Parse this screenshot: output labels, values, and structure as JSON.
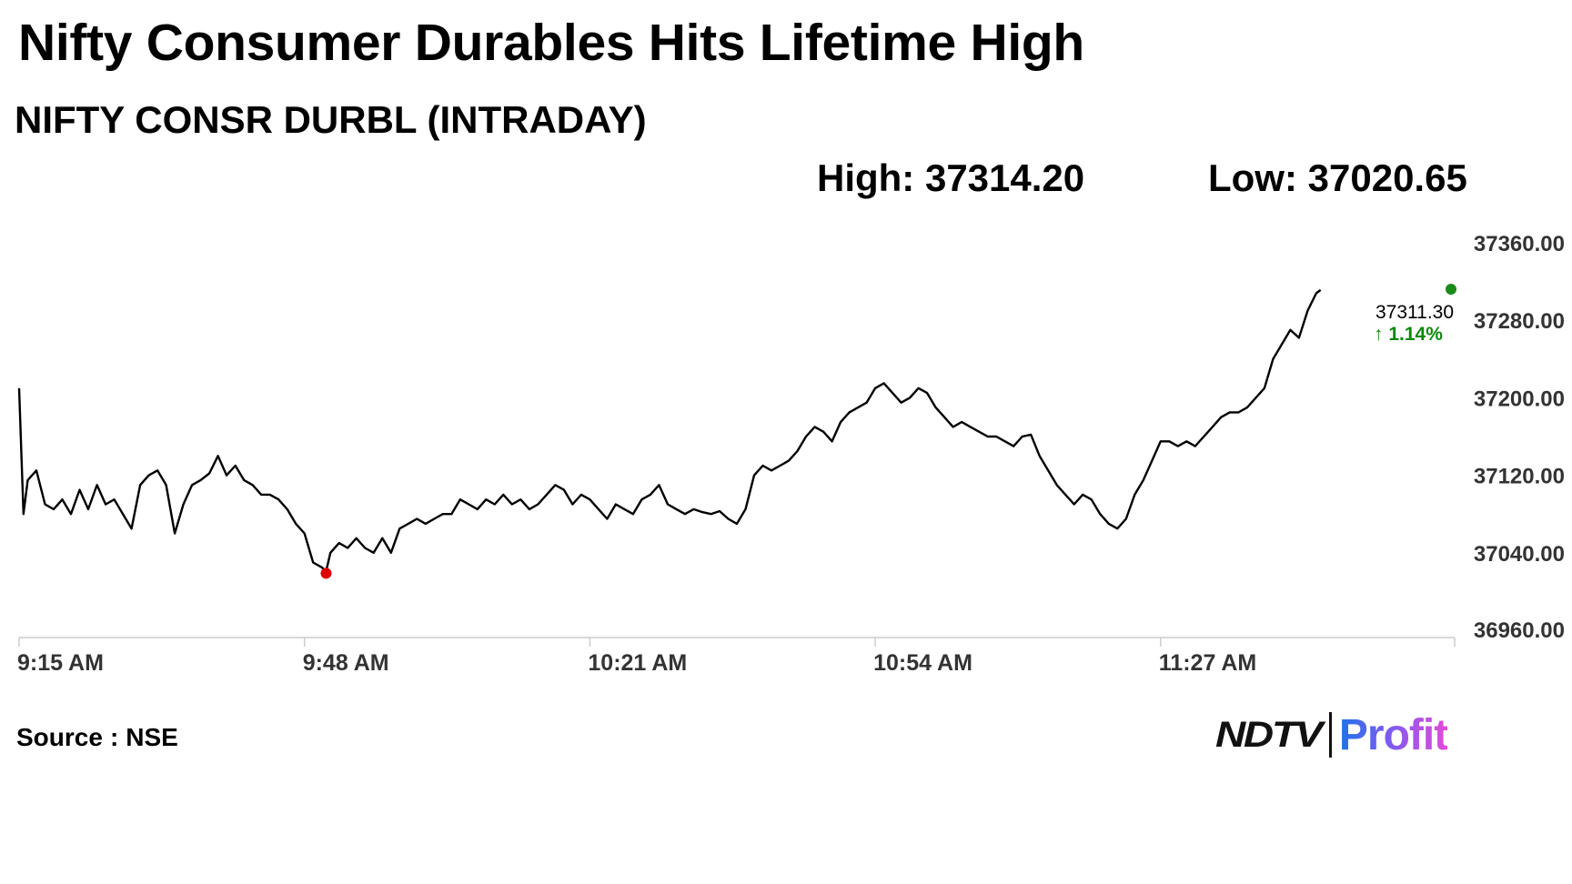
{
  "headline": "Nifty Consumer Durables Hits Lifetime High",
  "subtitle": "NIFTY CONSR DURBL (INTRADAY)",
  "stats": {
    "high_label": "High:",
    "high_value": "37314.20",
    "low_label": "Low:",
    "low_value": "37020.65"
  },
  "source": {
    "label": "Source",
    "separator": ":",
    "value": "NSE"
  },
  "brand": {
    "ndtv": "NDTV",
    "profit": "Profit"
  },
  "last": {
    "value": "37311.30",
    "change": "↑ 1.14%"
  },
  "colors": {
    "line": "#000000",
    "low_marker": "#e00000",
    "high_marker": "#1a8a1a",
    "change": "#0a8a0a",
    "axis": "#cccccc"
  },
  "chart_data": {
    "type": "line",
    "title": "NIFTY CONSR DURBL (INTRADAY)",
    "xlabel": "",
    "ylabel": "",
    "ylim": [
      36960,
      37360
    ],
    "y_ticks": [
      "36960.00",
      "37040.00",
      "37120.00",
      "37200.00",
      "37280.00",
      "37360.00"
    ],
    "x_ticks": [
      "9:15 AM",
      "9:48 AM",
      "10:21 AM",
      "10:54 AM",
      "11:27 AM"
    ],
    "x_range_minutes": [
      555,
      721
    ],
    "grid": false,
    "legend": "none",
    "series": [
      {
        "x": [
          555,
          555.5,
          556,
          557,
          558,
          559,
          560,
          561,
          562,
          563,
          564,
          565,
          566,
          567,
          568,
          569,
          570,
          571,
          572,
          573,
          574,
          575,
          576,
          577,
          578,
          579,
          580,
          581,
          582,
          583,
          584,
          585,
          586,
          587,
          588,
          589,
          590,
          590.5,
          591,
          592,
          593,
          594,
          595,
          596,
          597,
          598,
          599,
          600,
          601,
          602,
          603,
          604,
          605,
          606,
          607,
          608,
          609,
          610,
          611,
          612,
          613,
          614,
          615,
          616,
          617,
          618,
          619,
          620,
          621,
          622,
          623,
          624,
          625,
          626,
          627,
          628,
          629,
          630,
          631,
          632,
          633,
          634,
          635,
          636,
          637,
          638,
          639,
          640,
          641,
          642,
          643,
          644,
          645,
          646,
          647,
          648,
          649,
          650,
          651,
          652,
          653,
          654,
          655,
          656,
          657,
          658,
          659,
          660,
          661,
          662,
          663,
          664,
          665,
          666,
          667,
          668,
          669,
          670,
          671,
          672,
          673,
          674,
          675,
          676,
          677,
          678,
          679,
          680,
          681,
          682,
          683,
          684,
          685,
          686,
          687,
          688,
          689,
          690,
          691,
          692,
          693,
          694,
          695,
          696,
          697,
          698,
          699,
          700,
          701,
          702,
          703,
          704,
          705,
          705.5
        ],
        "values": [
          37210,
          37080,
          37115,
          37125,
          37090,
          37085,
          37095,
          37080,
          37105,
          37085,
          37110,
          37090,
          37095,
          37080,
          37065,
          37110,
          37120,
          37125,
          37110,
          37060,
          37090,
          37110,
          37115,
          37122,
          37140,
          37120,
          37130,
          37115,
          37110,
          37100,
          37100,
          37095,
          37085,
          37070,
          37060,
          37030,
          37025,
          37021,
          37040,
          37050,
          37045,
          37055,
          37045,
          37040,
          37055,
          37040,
          37065,
          37070,
          37075,
          37070,
          37075,
          37080,
          37080,
          37095,
          37090,
          37085,
          37095,
          37090,
          37100,
          37090,
          37095,
          37085,
          37090,
          37100,
          37110,
          37105,
          37090,
          37100,
          37095,
          37085,
          37075,
          37090,
          37085,
          37080,
          37095,
          37100,
          37110,
          37090,
          37085,
          37080,
          37085,
          37082,
          37080,
          37083,
          37075,
          37070,
          37085,
          37120,
          37130,
          37125,
          37130,
          37135,
          37145,
          37160,
          37170,
          37165,
          37155,
          37175,
          37185,
          37190,
          37195,
          37210,
          37215,
          37205,
          37195,
          37200,
          37210,
          37205,
          37190,
          37180,
          37170,
          37175,
          37170,
          37165,
          37160,
          37160,
          37155,
          37150,
          37160,
          37162,
          37140,
          37125,
          37110,
          37100,
          37090,
          37100,
          37095,
          37080,
          37070,
          37065,
          37075,
          37100,
          37115,
          37135,
          37155,
          37155,
          37150,
          37155,
          37150,
          37160,
          37170,
          37180,
          37185,
          37185,
          37190,
          37200,
          37210,
          37240,
          37255,
          37270,
          37262,
          37290,
          37308,
          37311.3
        ]
      }
    ],
    "markers": [
      {
        "name": "low",
        "x": 590.5,
        "y": 37020.65
      },
      {
        "name": "high",
        "x": 705.5,
        "y": 37314.2
      }
    ],
    "last_value": 37311.3,
    "change_pct": 1.14
  }
}
